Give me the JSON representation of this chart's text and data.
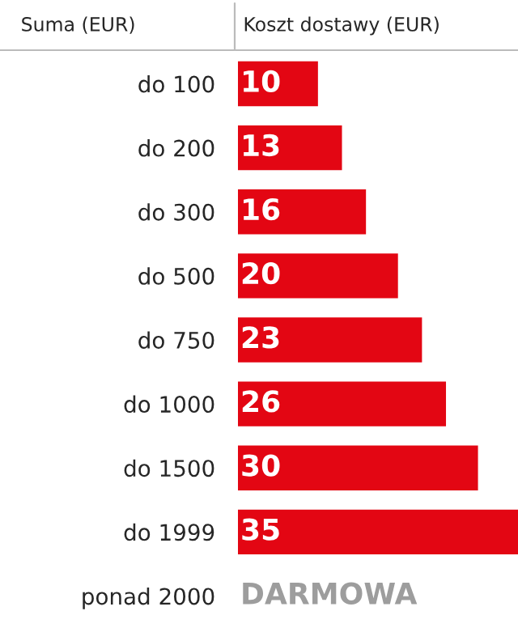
{
  "chart_data": {
    "type": "bar",
    "orientation": "horizontal",
    "xlabel": "Koszt dostawy (EUR)",
    "ylabel": "Suma (EUR)",
    "categories": [
      "do 100",
      "do 200",
      "do 300",
      "do 500",
      "do 750",
      "do 1000",
      "do 1500",
      "do 1999",
      "ponad 2000"
    ],
    "values": [
      10,
      13,
      16,
      20,
      23,
      26,
      30,
      35,
      0
    ],
    "value_labels": [
      "10",
      "13",
      "16",
      "20",
      "23",
      "26",
      "30",
      "35",
      "DARMOWA"
    ],
    "colors": [
      "#e30613",
      "#e30613",
      "#e30613",
      "#e30613",
      "#e30613",
      "#e30613",
      "#e30613",
      "#e30613",
      "#9d9d9d"
    ],
    "xlim": [
      0,
      35
    ],
    "tick_labels": "y",
    "grid": false,
    "legend": false
  }
}
